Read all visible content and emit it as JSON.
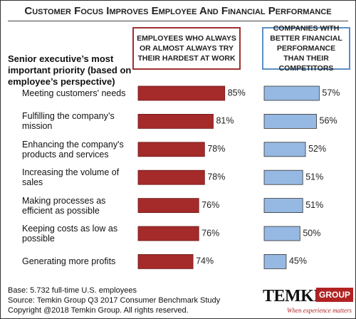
{
  "title": "Customer Focus Improves Employee And Financial Performance",
  "row_header": "Senior executive’s most important priority (based on employee’s perspective)",
  "chart_data": [
    {
      "type": "bar",
      "orientation": "horizontal",
      "title": "EMPLOYEES WHO ALWAYS OR ALMOST ALWAYS TRY THEIR HARDEST AT WORK",
      "categories": [
        "Meeting customers' needs",
        "Fulfilling the company’s mission",
        "Enhancing the company's products and services",
        "Increasing the volume of sales",
        "Making processes as efficient as possible",
        "Keeping costs as low as possible",
        "Generating more profits"
      ],
      "values": [
        85,
        81,
        78,
        78,
        76,
        76,
        74
      ],
      "value_labels": [
        "85%",
        "81%",
        "78%",
        "78%",
        "76%",
        "76%",
        "74%"
      ],
      "color": "#a52a2a",
      "border_color": "#a03030",
      "xlim": [
        55,
        90
      ]
    },
    {
      "type": "bar",
      "orientation": "horizontal",
      "title": "COMPANIES WITH BETTER FINANCIAL PERFORMANCE THAN THEIR COMPETITORS",
      "values": [
        57,
        56,
        52,
        51,
        51,
        50,
        45
      ],
      "value_labels": [
        "57%",
        "56%",
        "52%",
        "51%",
        "51%",
        "50%",
        "45%"
      ],
      "color": "#95b9e2",
      "border_color": "#5b8ec4",
      "xlim": [
        37,
        68
      ]
    }
  ],
  "footer": [
    "Base: 5.732 full-time U.S. employees",
    "Source: Temkin Group Q3 2017 Consumer Benchmark Study",
    "Copyright @2018 Temkin Group. All rights reserved."
  ],
  "logo": {
    "name": "TEMKIN",
    "group": "GROUP",
    "tagline": "When experience matters"
  }
}
